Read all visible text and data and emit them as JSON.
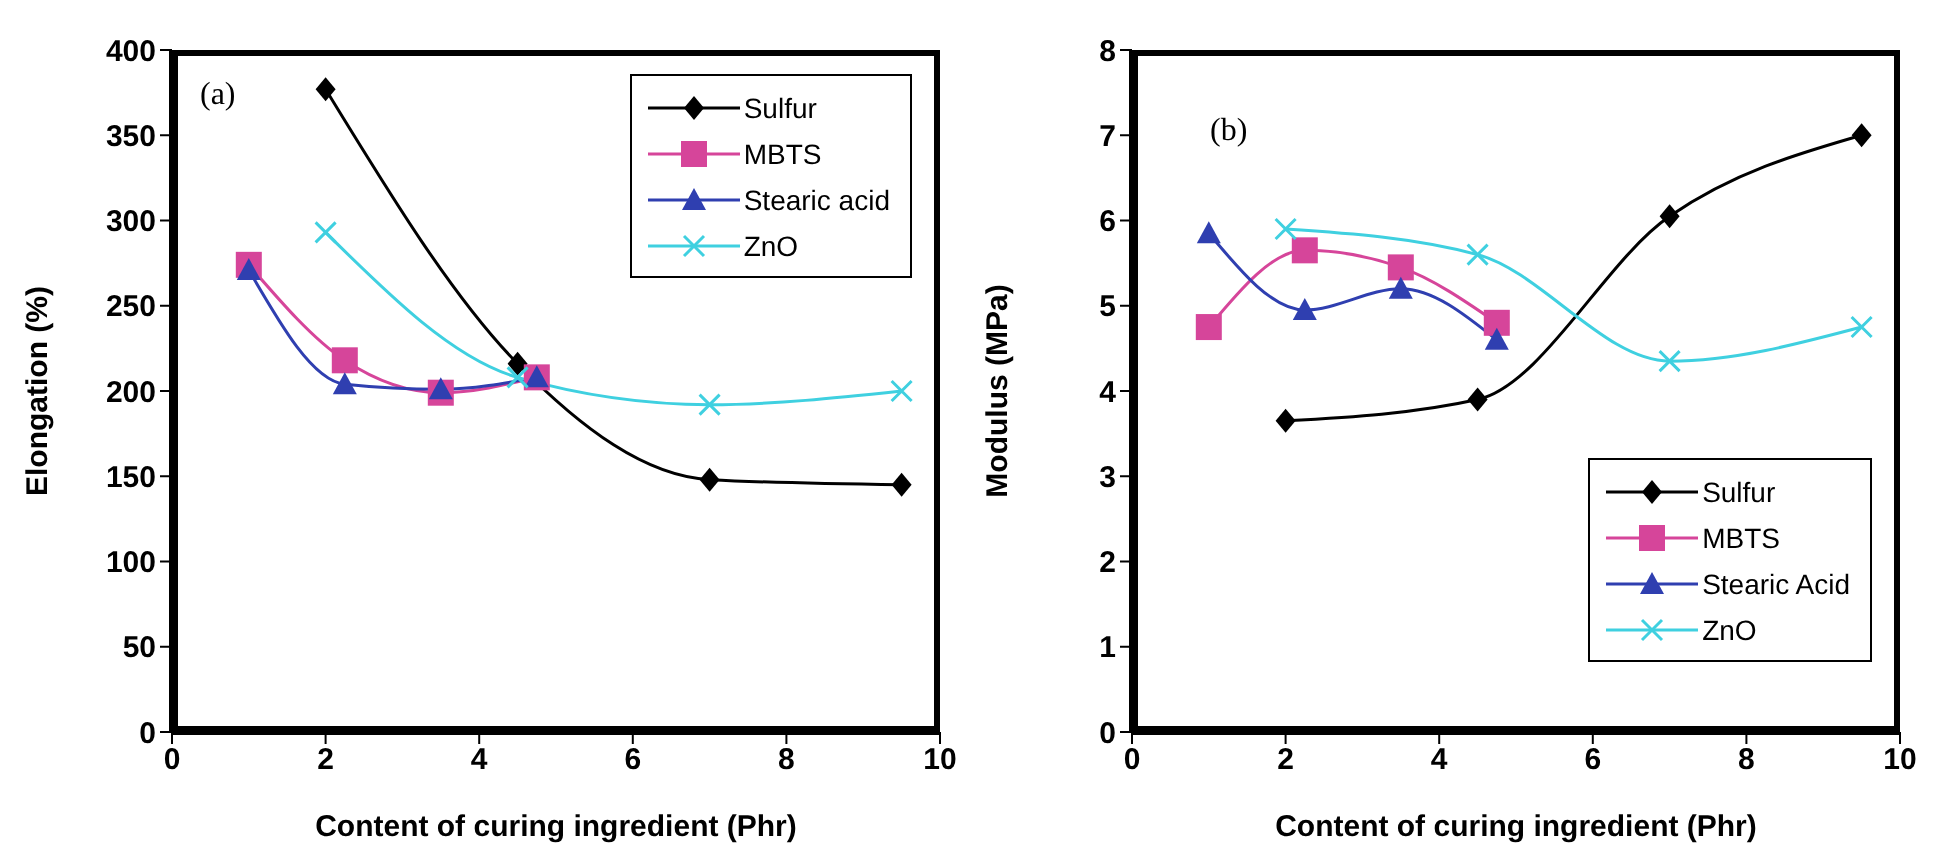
{
  "chart_data": [
    {
      "type": "line",
      "xlabel": "Content of curing ingredient (Phr)",
      "ylabel": "Elongation (%)",
      "annotations": [
        "(a)"
      ],
      "xlim": [
        0,
        10
      ],
      "xticks": [
        0,
        2,
        4,
        6,
        8,
        10
      ],
      "ylim": [
        0,
        400
      ],
      "yticks": [
        0,
        50,
        100,
        150,
        200,
        250,
        300,
        350,
        400
      ],
      "grid": false,
      "legend": "top right",
      "line_style": "solid",
      "series": [
        {
          "name": "Sulfur",
          "color": "#000000",
          "marker": "diamond",
          "x": [
            2,
            4.5,
            7,
            9.5
          ],
          "values": [
            377,
            216,
            148,
            145
          ]
        },
        {
          "name": "MBTS",
          "color": "#d6459a",
          "marker": "square",
          "x": [
            1,
            2.25,
            3.5,
            4.75
          ],
          "values": [
            274,
            218,
            199,
            208
          ]
        },
        {
          "name": "Stearic acid",
          "color": "#2f3fb0",
          "marker": "triangle",
          "x": [
            1,
            2.25,
            3.5,
            4.75
          ],
          "values": [
            271,
            204,
            201,
            208
          ]
        },
        {
          "name": "ZnO",
          "color": "#3fd0e0",
          "marker": "cross",
          "x": [
            2,
            4.5,
            7,
            9.5
          ],
          "values": [
            293,
            208,
            192,
            200
          ]
        }
      ]
    },
    {
      "type": "line",
      "xlabel": "Content of curing ingredient  (Phr)",
      "ylabel": "Modulus (MPa)",
      "annotations": [
        "(b)"
      ],
      "xlim": [
        0,
        10
      ],
      "xticks": [
        0,
        2,
        4,
        6,
        8,
        10
      ],
      "ylim": [
        0,
        8
      ],
      "yticks": [
        0,
        1,
        2,
        3,
        4,
        5,
        6,
        7,
        8
      ],
      "grid": false,
      "legend": "bottom right",
      "line_style": "solid",
      "series": [
        {
          "name": "Sulfur",
          "color": "#000000",
          "marker": "diamond",
          "x": [
            2,
            4.5,
            7,
            9.5
          ],
          "values": [
            3.65,
            3.9,
            6.05,
            7.0
          ]
        },
        {
          "name": "MBTS",
          "color": "#d6459a",
          "marker": "square",
          "x": [
            1,
            2.25,
            3.5,
            4.75
          ],
          "values": [
            4.75,
            5.65,
            5.45,
            4.8
          ]
        },
        {
          "name": "Stearic Acid",
          "color": "#2f3fb0",
          "marker": "triangle",
          "x": [
            1,
            2.25,
            3.5,
            4.75
          ],
          "values": [
            5.85,
            4.95,
            5.2,
            4.6
          ]
        },
        {
          "name": "ZnO",
          "color": "#3fd0e0",
          "marker": "cross",
          "x": [
            2,
            4.5,
            7,
            9.5
          ],
          "values": [
            5.9,
            5.6,
            4.35,
            4.75
          ]
        }
      ]
    }
  ]
}
